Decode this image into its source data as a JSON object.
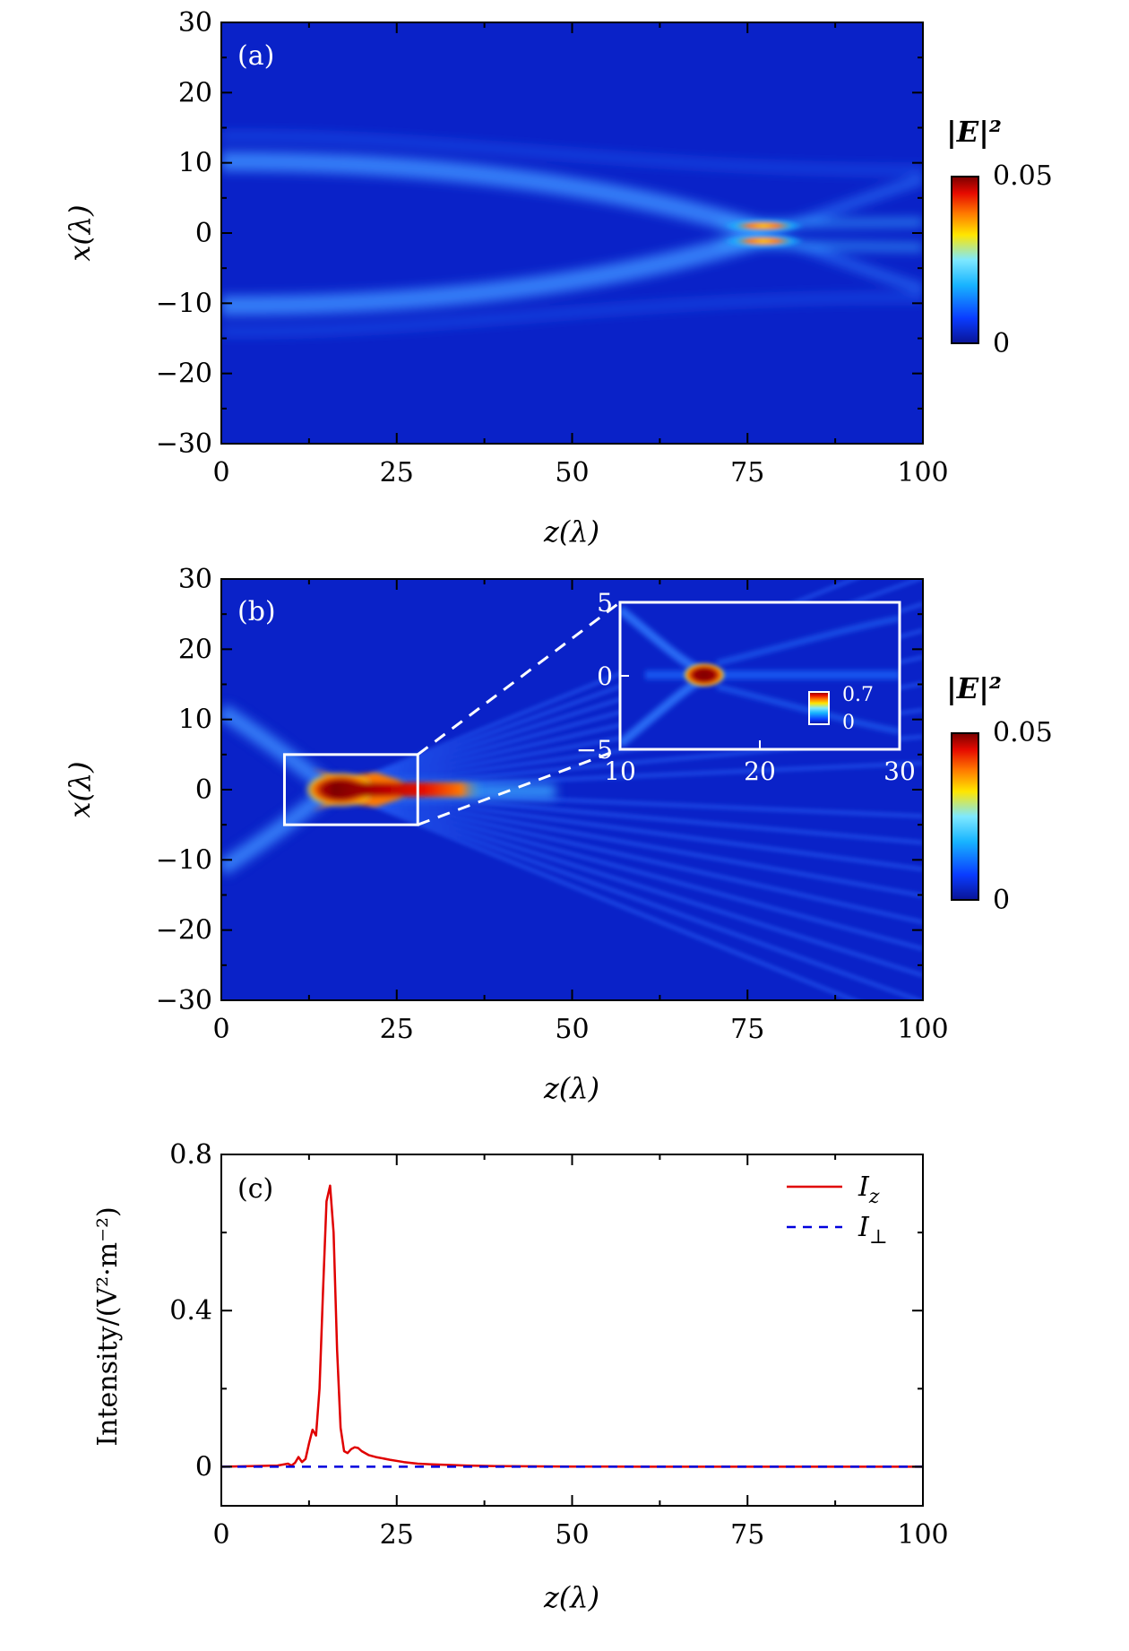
{
  "colors": {
    "field_background": "#0a22c8",
    "colormap": [
      "#0a1496",
      "#0a3cff",
      "#18b4ff",
      "#7ee8ff",
      "#ffe600",
      "#ff7800",
      "#e60a00",
      "#7a0000"
    ],
    "line_Iz": "#e00000",
    "line_Iperp": "#0000dd",
    "inset_frame": "#ffffff"
  },
  "chart_data": [
    {
      "type": "heatmap",
      "panel_label": "(a)",
      "xlabel": "z(λ)",
      "ylabel": "x(λ)",
      "xlim": [
        0,
        100
      ],
      "ylim": [
        -30,
        30
      ],
      "x_ticks": [
        "0",
        "25",
        "50",
        "75",
        "100"
      ],
      "y_ticks": [
        "30",
        "20",
        "10",
        "0",
        "−10",
        "−20",
        "−30"
      ],
      "colorbar": {
        "title": "|E|²",
        "min_label": "0",
        "max_label": "0.05",
        "range": [
          0,
          0.05
        ]
      },
      "features": {
        "beam_start_x": [
          11,
          -11
        ],
        "crossing_z": 73,
        "hotspots": [
          {
            "z": 73,
            "x": 1.2,
            "value": 0.04
          },
          {
            "z": 73,
            "x": -1.2,
            "value": 0.04
          }
        ]
      }
    },
    {
      "type": "heatmap",
      "panel_label": "(b)",
      "xlabel": "z(λ)",
      "ylabel": "x(λ)",
      "xlim": [
        0,
        100
      ],
      "ylim": [
        -30,
        30
      ],
      "x_ticks": [
        "0",
        "25",
        "50",
        "75",
        "100"
      ],
      "y_ticks": [
        "30",
        "20",
        "10",
        "0",
        "−10",
        "−20",
        "−30"
      ],
      "colorbar": {
        "title": "|E|²",
        "min_label": "0",
        "max_label": "0.05",
        "range": [
          0,
          0.05
        ]
      },
      "features": {
        "crossing_z": 16,
        "hotspot": {
          "z": 16,
          "x": 0,
          "value": 0.7
        }
      },
      "zoom_box": {
        "z": [
          9,
          28
        ],
        "x": [
          -5,
          5
        ]
      },
      "inset": {
        "xlim": [
          10,
          30
        ],
        "ylim": [
          -5,
          5
        ],
        "x_ticks": [
          "10",
          "20",
          "30"
        ],
        "y_ticks": [
          "5",
          "0",
          "−5"
        ],
        "colorbar": {
          "min_label": "0",
          "max_label": "0.7",
          "range": [
            0,
            0.7
          ]
        }
      }
    },
    {
      "type": "line",
      "panel_label": "(c)",
      "xlabel": "z(λ)",
      "ylabel": "Intensity/(V²·m⁻²)",
      "xlim": [
        0,
        100
      ],
      "ylim": [
        -0.1,
        0.8
      ],
      "x_ticks": [
        "0",
        "25",
        "50",
        "75",
        "100"
      ],
      "y_ticks": [
        "0.8",
        "0.4",
        "0"
      ],
      "series": [
        {
          "name": "Iz",
          "name_main": "I",
          "name_sub": "z",
          "style": "solid",
          "x": [
            0,
            5,
            8,
            9.5,
            10,
            10.5,
            11,
            11.5,
            12,
            12.5,
            13,
            13.5,
            14,
            14.5,
            15,
            15.5,
            16,
            16.5,
            17,
            17.5,
            18,
            18.5,
            19,
            19.5,
            20,
            21,
            22,
            24,
            26,
            28,
            30,
            35,
            40,
            50,
            60,
            75,
            100
          ],
          "y": [
            0,
            0.002,
            0.003,
            0.008,
            0.003,
            0.01,
            0.025,
            0.012,
            0.02,
            0.06,
            0.095,
            0.08,
            0.2,
            0.45,
            0.68,
            0.72,
            0.6,
            0.3,
            0.1,
            0.04,
            0.035,
            0.045,
            0.05,
            0.048,
            0.04,
            0.03,
            0.025,
            0.018,
            0.012,
            0.008,
            0.006,
            0.003,
            0.0015,
            0.0005,
            0.0002,
            0,
            0
          ]
        },
        {
          "name": "I⊥",
          "name_main": "I",
          "name_sub": "⊥",
          "style": "dashed",
          "x": [
            0,
            100
          ],
          "y": [
            0,
            0
          ]
        }
      ]
    }
  ]
}
